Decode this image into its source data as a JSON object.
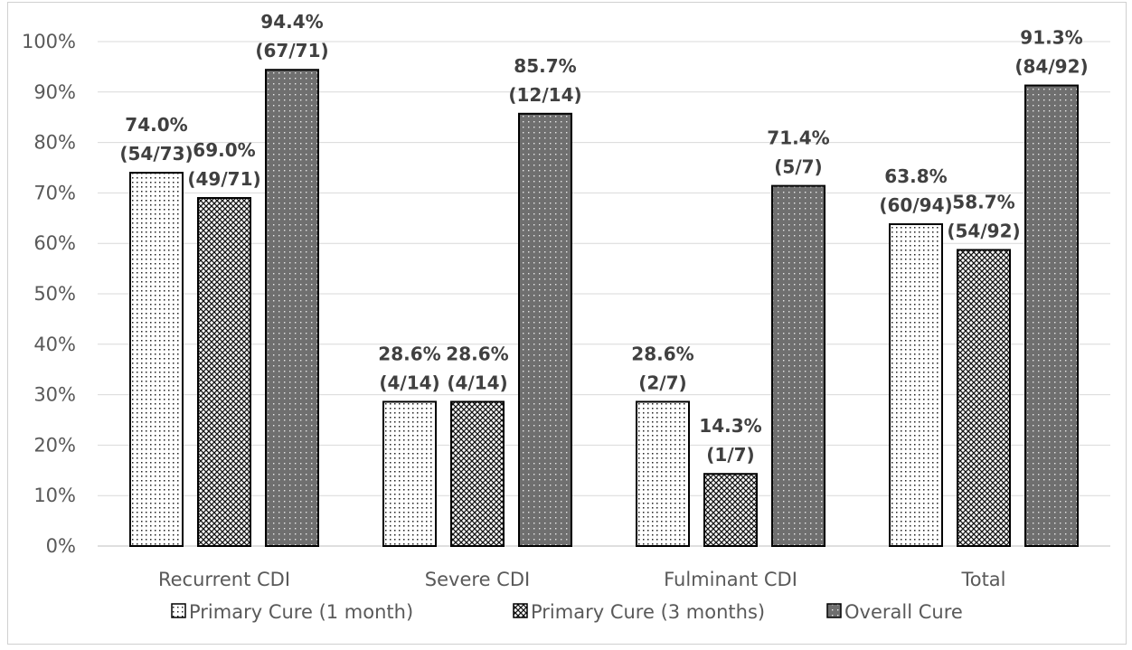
{
  "chart_data": {
    "type": "bar",
    "title": "",
    "xlabel": "",
    "ylabel": "",
    "ylim": [
      0,
      100
    ],
    "y_ticks": [
      "0%",
      "10%",
      "20%",
      "30%",
      "40%",
      "50%",
      "60%",
      "70%",
      "80%",
      "90%",
      "100%"
    ],
    "grid": true,
    "legend_position": "bottom",
    "categories": [
      "Recurrent CDI",
      "Severe CDI",
      "Fulminant CDI",
      "Total"
    ],
    "series": [
      {
        "name": "Primary Cure (1 month)",
        "pattern": "dots",
        "color": "#ffffff",
        "values": [
          74.0,
          28.6,
          28.6,
          63.8
        ],
        "labels": [
          [
            "74.0%",
            "(54/73)"
          ],
          [
            "28.6%",
            "(4/14)"
          ],
          [
            "28.6%",
            "(2/7)"
          ],
          [
            "63.8%",
            "(60/94)"
          ]
        ]
      },
      {
        "name": "Primary Cure (3 months)",
        "pattern": "crosshatch",
        "color": "#bfbfbf",
        "values": [
          69.0,
          28.6,
          14.3,
          58.7
        ],
        "labels": [
          [
            "69.0%",
            "(49/71)"
          ],
          [
            "28.6%",
            "(4/14)"
          ],
          [
            "14.3%",
            "(1/7)"
          ],
          [
            "58.7%",
            "(54/92)"
          ]
        ]
      },
      {
        "name": "Overall Cure",
        "pattern": "dark-dots",
        "color": "#7f7f7f",
        "values": [
          94.4,
          85.7,
          71.4,
          91.3
        ],
        "labels": [
          [
            "94.4%",
            "(67/71)"
          ],
          [
            "85.7%",
            "(12/14)"
          ],
          [
            "71.4%",
            "(5/7)"
          ],
          [
            "91.3%",
            "(84/92)"
          ]
        ]
      }
    ]
  }
}
